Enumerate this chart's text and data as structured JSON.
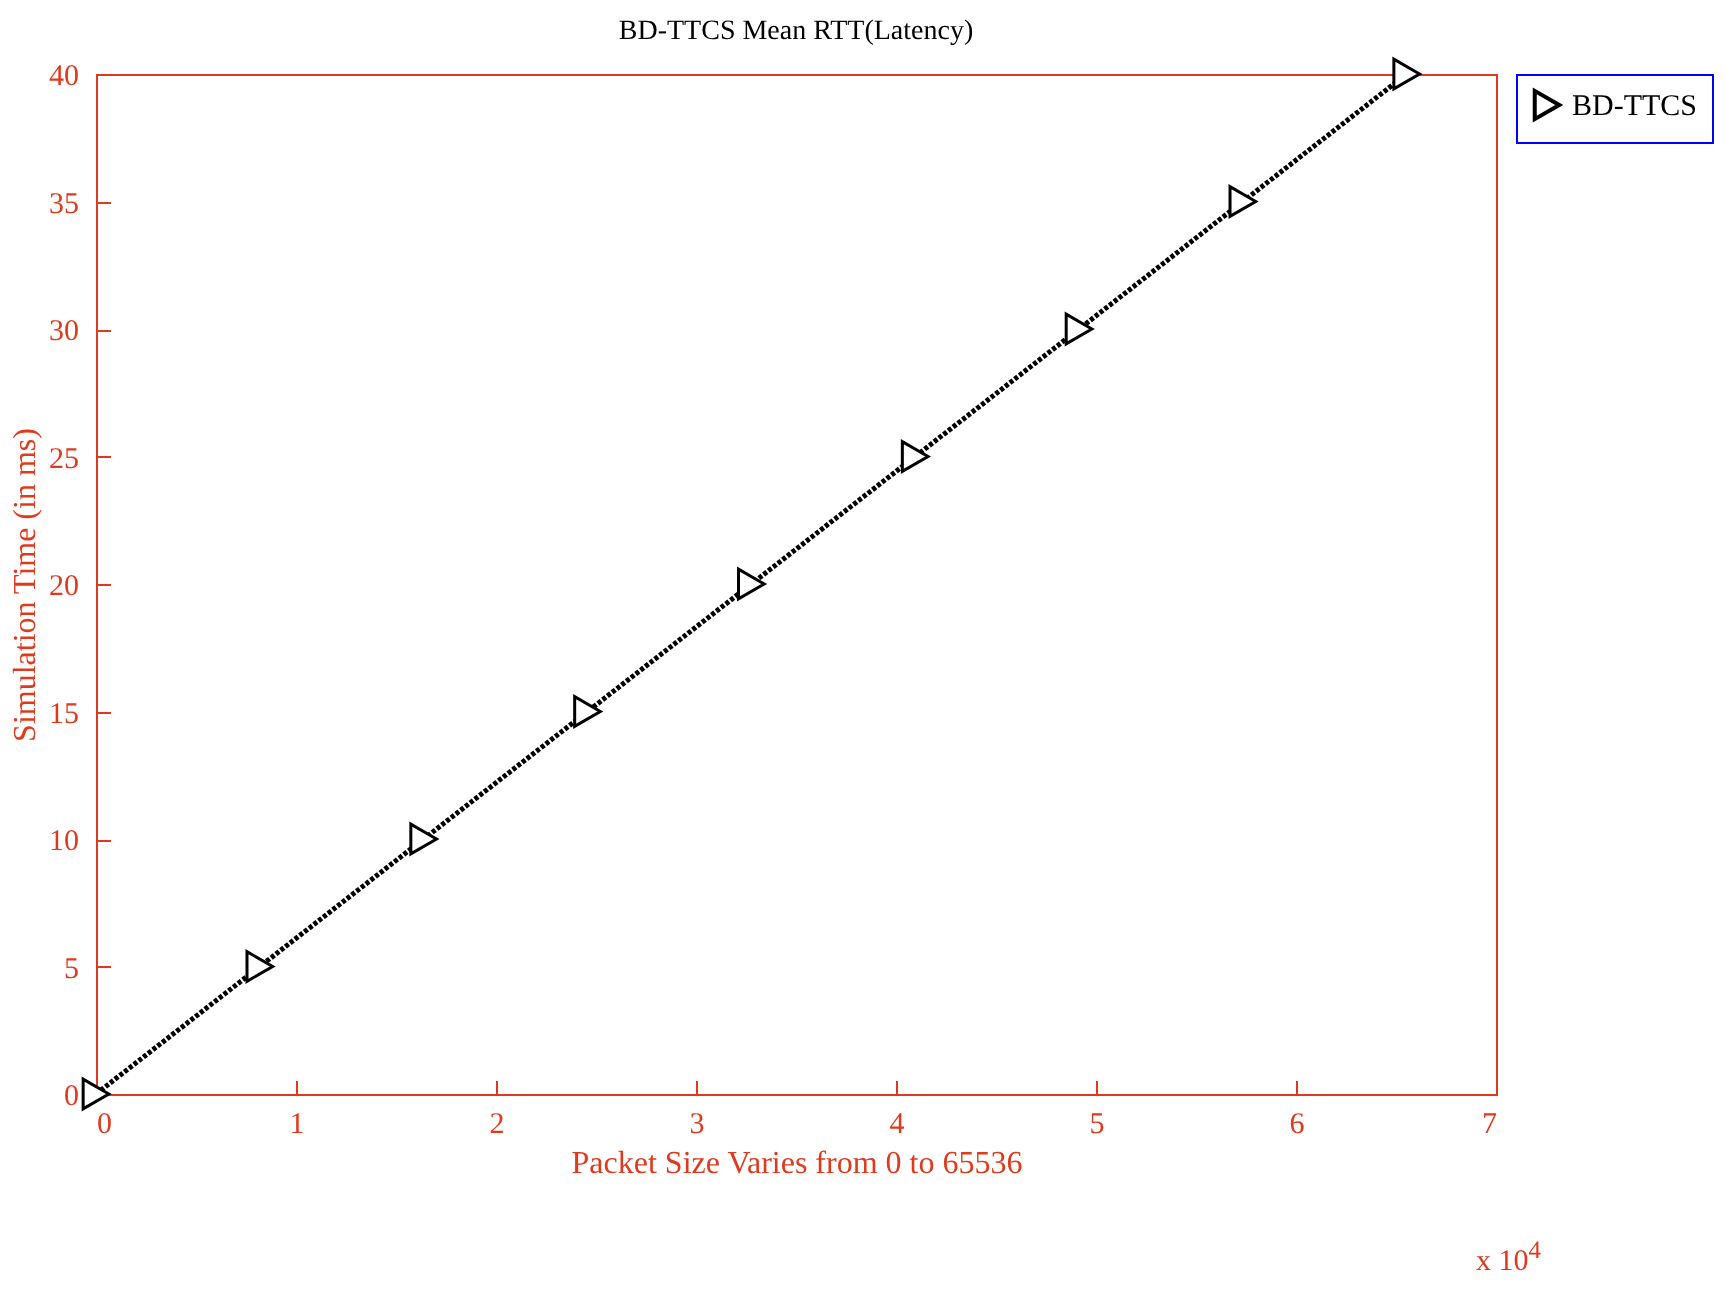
{
  "chart_data": {
    "type": "line",
    "title": "BD-TTCS Mean RTT(Latency)",
    "xlabel": "Packet Size Varies from 0 to 65536",
    "ylabel": "Simulation Time (in ms)",
    "x": [
      0,
      0.8192,
      1.6384,
      2.4576,
      3.2768,
      4.096,
      4.9152,
      5.7344,
      6.5536
    ],
    "series": [
      {
        "name": "BD-TTCS",
        "color": "#000000",
        "values": [
          0,
          5,
          10,
          15,
          20,
          25,
          30,
          35,
          40
        ]
      }
    ],
    "xlim": [
      0,
      7
    ],
    "xticks": [
      0,
      1,
      2,
      3,
      4,
      5,
      6,
      7
    ],
    "ylim": [
      0,
      40
    ],
    "yticks": [
      0,
      5,
      10,
      15,
      20,
      25,
      30,
      35,
      40
    ],
    "annotations": [
      "x 10$^{4}$"
    ],
    "marker": "triangle",
    "line_style": "dotted",
    "legend": "top right",
    "grid": false
  }
}
